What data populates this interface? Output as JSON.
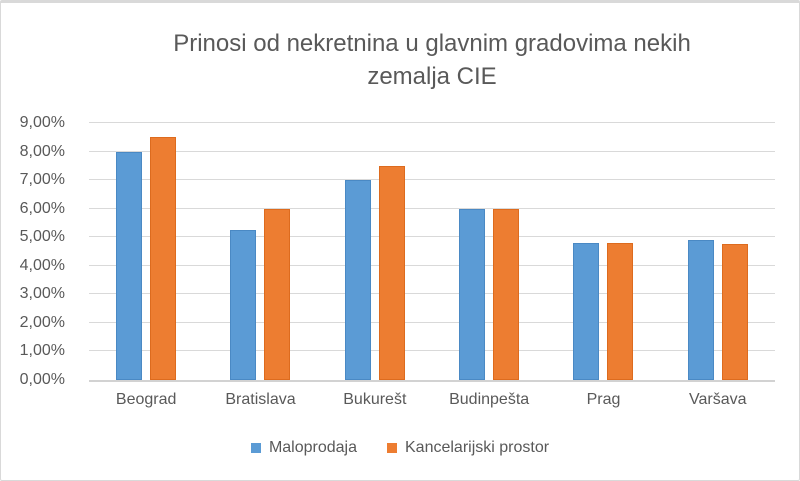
{
  "chart": {
    "title_line1": "Prinosi od nekretnina u glavnim gradovima nekih",
    "title_line2": "zemalja CIE"
  },
  "colors": {
    "series_blue": "#5B9BD5",
    "series_blue_border": "#4A89C4",
    "series_orange": "#ED7D31",
    "series_orange_border": "#DD6B1E",
    "text": "#595959",
    "gridline": "#D9D9D9",
    "axis_line": "#D2D2D2",
    "chart_border": "#D9D9D9",
    "background": "#FFFFFF"
  },
  "chart_data": {
    "type": "bar",
    "title": "Prinosi od nekretnina u glavnim gradovima nekih zemalja CIE",
    "categories": [
      "Beograd",
      "Bratislava",
      "Bukurešt",
      "Budinpešta",
      "Prag",
      "Varšava"
    ],
    "series": [
      {
        "name": "Maloprodaja",
        "color": "#5B9BD5",
        "border": "#4A89C4",
        "values": [
          8.0,
          5.25,
          7.0,
          6.0,
          4.8,
          4.9
        ]
      },
      {
        "name": "Kancelarijski prostor",
        "color": "#ED7D31",
        "border": "#DD6B1E",
        "values": [
          8.5,
          6.0,
          7.5,
          6.0,
          4.8,
          4.75
        ]
      }
    ],
    "xlabel": "",
    "ylabel": "",
    "ylim": [
      0,
      9
    ],
    "y_tick_step": 1,
    "y_ticks": [
      "0,00%",
      "1,00%",
      "2,00%",
      "3,00%",
      "4,00%",
      "5,00%",
      "6,00%",
      "7,00%",
      "8,00%",
      "9,00%"
    ],
    "value_unit": "percent",
    "decimal_separator": ",",
    "grid": true,
    "legend_position": "bottom"
  }
}
